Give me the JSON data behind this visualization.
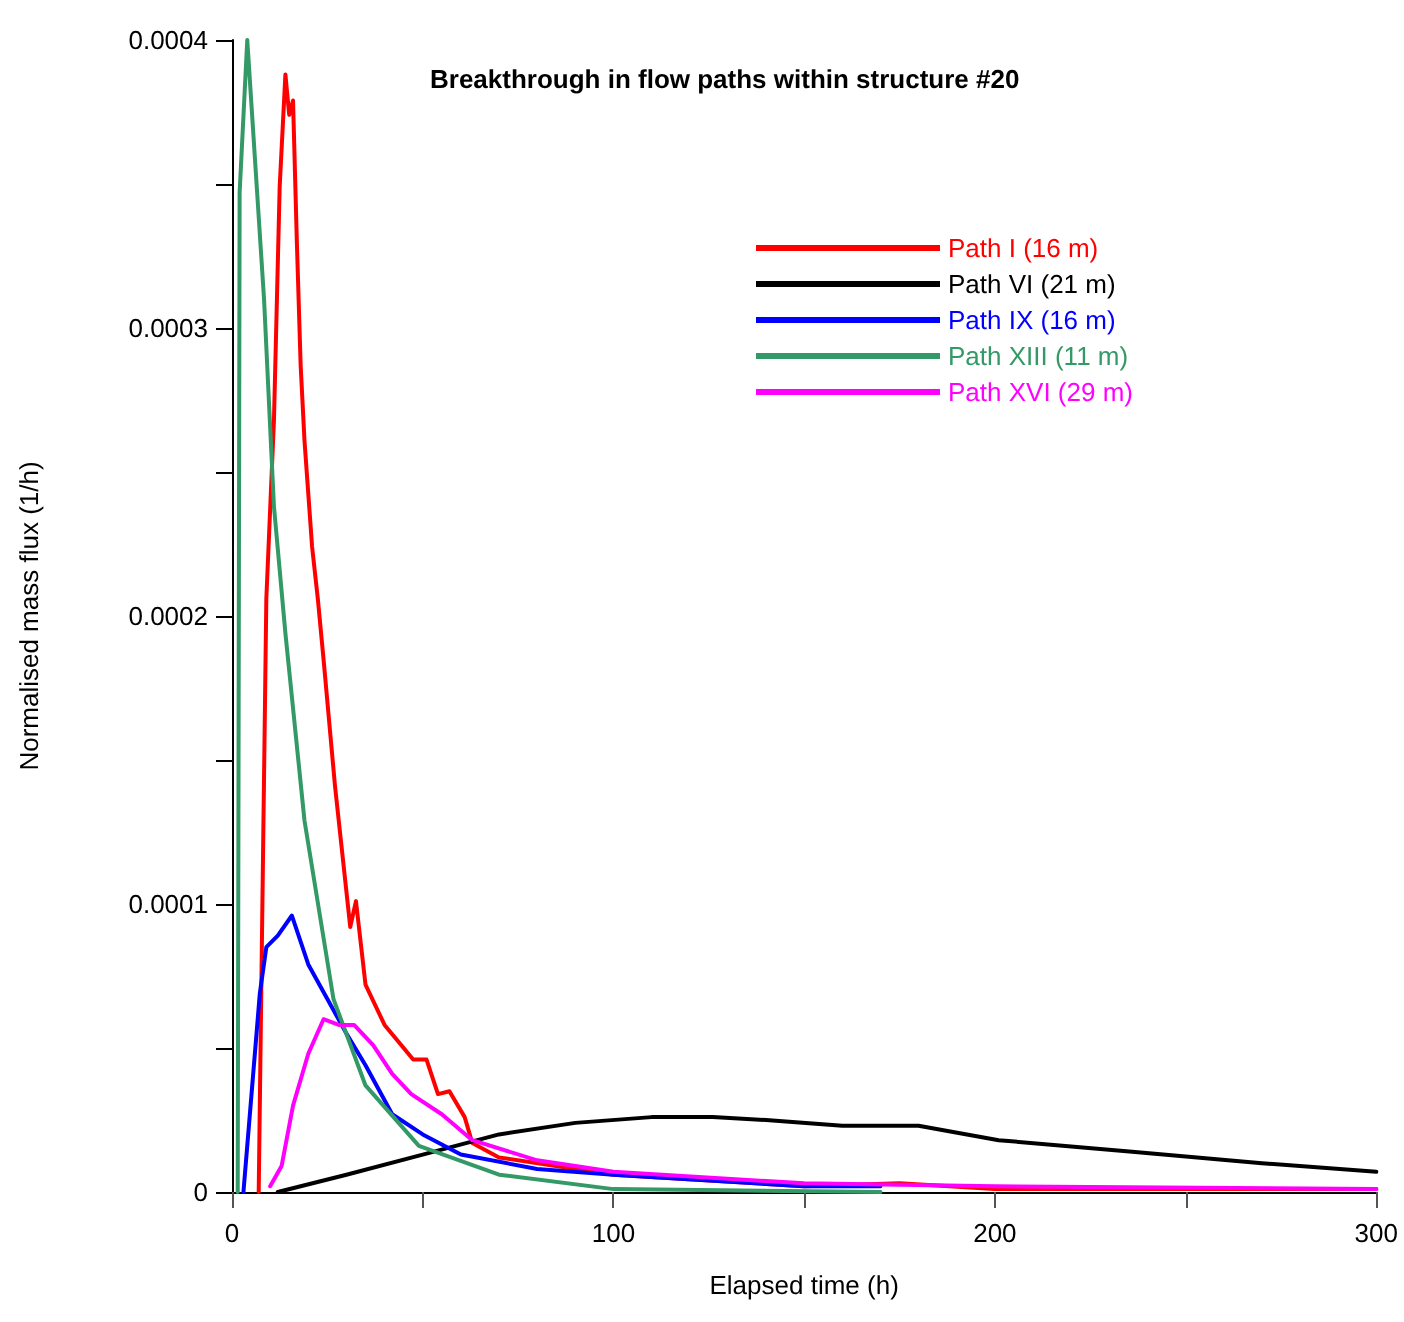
{
  "chart_data": {
    "type": "line",
    "title": "Breakthrough in flow paths within structure #20",
    "xlabel": "Elapsed time (h)",
    "ylabel": "Normalised mass flux (1/h)",
    "xlim": [
      0,
      300
    ],
    "xticks": [
      0,
      {
        "value": 50,
        "label": null
      },
      100,
      {
        "value": 150,
        "label": null
      },
      200,
      {
        "value": 250,
        "label": null
      },
      300
    ],
    "ylim": [
      0,
      0.0004
    ],
    "yticks": [
      0,
      {
        "value": 5e-05,
        "label": null
      },
      0.0001,
      {
        "value": 0.00015,
        "label": null
      },
      0.0002,
      {
        "value": 0.00025,
        "label": null
      },
      0.0003,
      {
        "value": 0.00035,
        "label": null
      },
      0.0004
    ],
    "grid": false,
    "legend": "top right",
    "marker": "none",
    "line_style": "solid",
    "series": [
      {
        "name": "Path I (16 m)",
        "color": "#ff0000",
        "x": [
          7,
          9,
          11,
          12.5,
          14,
          15,
          16,
          17,
          18,
          19,
          21,
          22.5,
          24,
          27,
          31,
          32.5,
          35,
          40,
          47.5,
          51,
          54,
          57,
          61,
          63,
          70,
          100,
          150,
          175,
          200,
          250,
          300
        ],
        "values": [
          0,
          0.000206,
          0.000268,
          0.000349,
          0.000388,
          0.000374,
          0.000379,
          0.00033,
          0.000287,
          0.000261,
          0.000224,
          0.000206,
          0.000185,
          0.000141,
          9.2e-05,
          0.000101,
          7.2e-05,
          5.8e-05,
          4.6e-05,
          4.6e-05,
          3.4e-05,
          3.5e-05,
          2.6e-05,
          1.7e-05,
          1.2e-05,
          6e-06,
          2e-06,
          3e-06,
          1e-06,
          1e-06,
          1e-06
        ]
      },
      {
        "name": "Path VI (21 m)",
        "color": "#000000",
        "x": [
          12,
          30,
          50,
          70,
          90,
          110,
          126,
          140,
          160,
          180,
          201,
          236,
          270,
          300
        ],
        "values": [
          0,
          6e-06,
          1.3e-05,
          2e-05,
          2.4e-05,
          2.6e-05,
          2.6e-05,
          2.5e-05,
          2.3e-05,
          2.3e-05,
          1.8e-05,
          1.4e-05,
          1e-05,
          7e-06
        ]
      },
      {
        "name": "Path IX (16 m)",
        "color": "#0000ff",
        "x": [
          3,
          7.3,
          9,
          12,
          15.7,
          20,
          25,
          30,
          35,
          42,
          50,
          60,
          80,
          100,
          150,
          170
        ],
        "values": [
          0,
          6.9e-05,
          8.5e-05,
          8.9e-05,
          9.6e-05,
          7.9e-05,
          6.7e-05,
          5.5e-05,
          4.4e-05,
          2.7e-05,
          2e-05,
          1.3e-05,
          8e-06,
          6e-06,
          2e-06,
          2e-06
        ]
      },
      {
        "name": "Path XIII (11 m)",
        "color": "#339966",
        "x": [
          1.5,
          2,
          4,
          8.4,
          11,
          14,
          19,
          26.6,
          35,
          49,
          70,
          100,
          170
        ],
        "values": [
          0,
          0.000347,
          0.0004,
          0.00031,
          0.000238,
          0.000194,
          0.000129,
          6.7e-05,
          3.7e-05,
          1.6e-05,
          6e-06,
          1e-06,
          0
        ]
      },
      {
        "name": "Path XVI (29 m)",
        "color": "#ff00ff",
        "x": [
          10,
          13,
          16,
          20,
          24,
          28,
          32,
          37,
          42,
          47,
          55,
          63,
          80,
          100,
          150,
          200,
          300
        ],
        "values": [
          2e-06,
          9e-06,
          3e-05,
          4.8e-05,
          6e-05,
          5.8e-05,
          5.8e-05,
          5.1e-05,
          4.1e-05,
          3.4e-05,
          2.7e-05,
          1.8e-05,
          1.1e-05,
          7e-06,
          3e-06,
          2e-06,
          1e-06
        ]
      }
    ]
  }
}
